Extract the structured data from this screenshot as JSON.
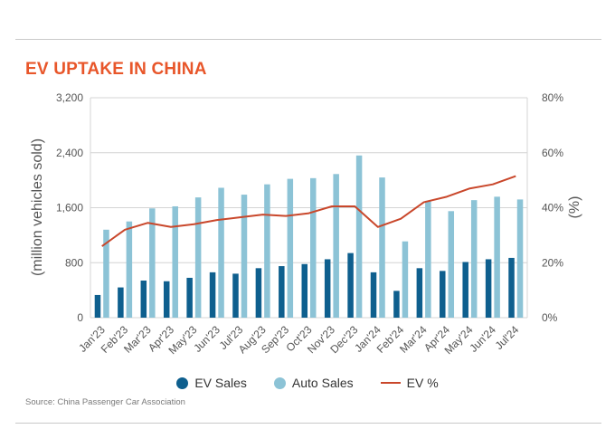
{
  "title": "EV UPTAKE IN CHINA",
  "source": "Source: China Passenger Car Association",
  "chart_data": {
    "type": "bar",
    "categories": [
      "Jan'23",
      "Feb'23",
      "Mar'23",
      "Apr'23",
      "May'23",
      "Jun'23",
      "Jul'23",
      "Aug'23",
      "Sep'23",
      "Oct'23",
      "Nov'23",
      "Dec'23",
      "Jan'24",
      "Feb'24",
      "Mar'24",
      "Apr'24",
      "May'24",
      "Jun'24",
      "Jul'24"
    ],
    "ylabel": "(million vehicles sold)",
    "y2label": "(%)",
    "ylim": [
      0,
      3200
    ],
    "y2lim": [
      0,
      80
    ],
    "yticks": [
      "0",
      "800",
      "1,600",
      "2,400",
      "3,200"
    ],
    "y2ticks": [
      "0%",
      "20%",
      "40%",
      "60%",
      "80%"
    ],
    "series": [
      {
        "name": "EV Sales",
        "kind": "bar",
        "axis": "left",
        "color": "#0e5f8e",
        "values": [
          330,
          440,
          540,
          530,
          580,
          660,
          640,
          720,
          750,
          780,
          850,
          940,
          660,
          390,
          720,
          680,
          810,
          850,
          870
        ]
      },
      {
        "name": "Auto Sales",
        "kind": "bar",
        "axis": "left",
        "color": "#8cc3d6",
        "values": [
          1280,
          1400,
          1590,
          1620,
          1750,
          1890,
          1790,
          1940,
          2020,
          2030,
          2090,
          2360,
          2040,
          1110,
          1700,
          1550,
          1710,
          1760,
          1720
        ]
      },
      {
        "name": "EV %",
        "kind": "line",
        "axis": "right",
        "color": "#c9472b",
        "values": [
          26,
          32,
          34.5,
          33,
          34,
          35.5,
          36.5,
          37.5,
          37,
          38,
          40.5,
          40.5,
          33,
          36,
          42,
          44,
          47,
          48.5,
          51.5
        ]
      }
    ],
    "grid": true,
    "legend": "bottom"
  }
}
